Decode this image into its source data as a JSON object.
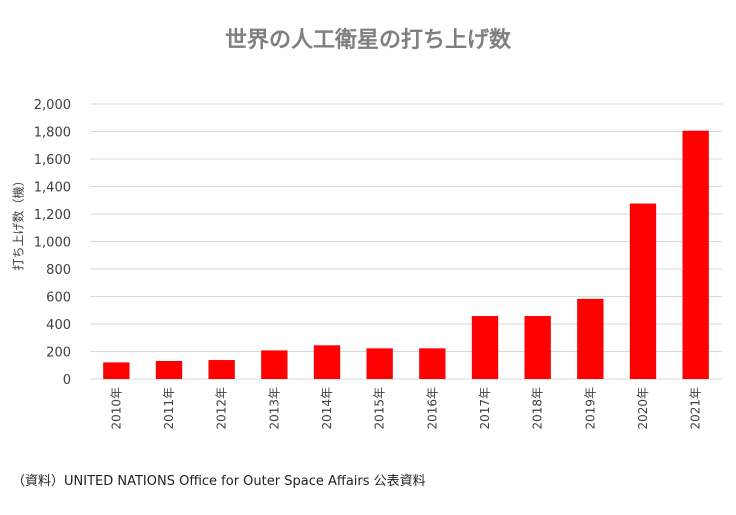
{
  "chart_data": {
    "type": "bar",
    "title": "世界の人工衛星の打ち上げ数",
    "xlabel": "",
    "ylabel": "打ち上げ数（機）",
    "categories": [
      "2010年",
      "2011年",
      "2012年",
      "2013年",
      "2014年",
      "2015年",
      "2016年",
      "2017年",
      "2018年",
      "2019年",
      "2020年",
      "2021年"
    ],
    "values": [
      121,
      131,
      138,
      208,
      245,
      223,
      223,
      458,
      458,
      583,
      1276,
      1806
    ],
    "ylim": [
      0,
      2000
    ],
    "yticks": [
      "0",
      "200",
      "400",
      "600",
      "800",
      "1,000",
      "1,200",
      "1,400",
      "1,600",
      "1,800",
      "2,000"
    ],
    "grid": true,
    "legend": "none",
    "bar_color": "#ff0000"
  },
  "source": "（資料）UNITED NATIONS Office for Outer Space Affairs 公表資料"
}
